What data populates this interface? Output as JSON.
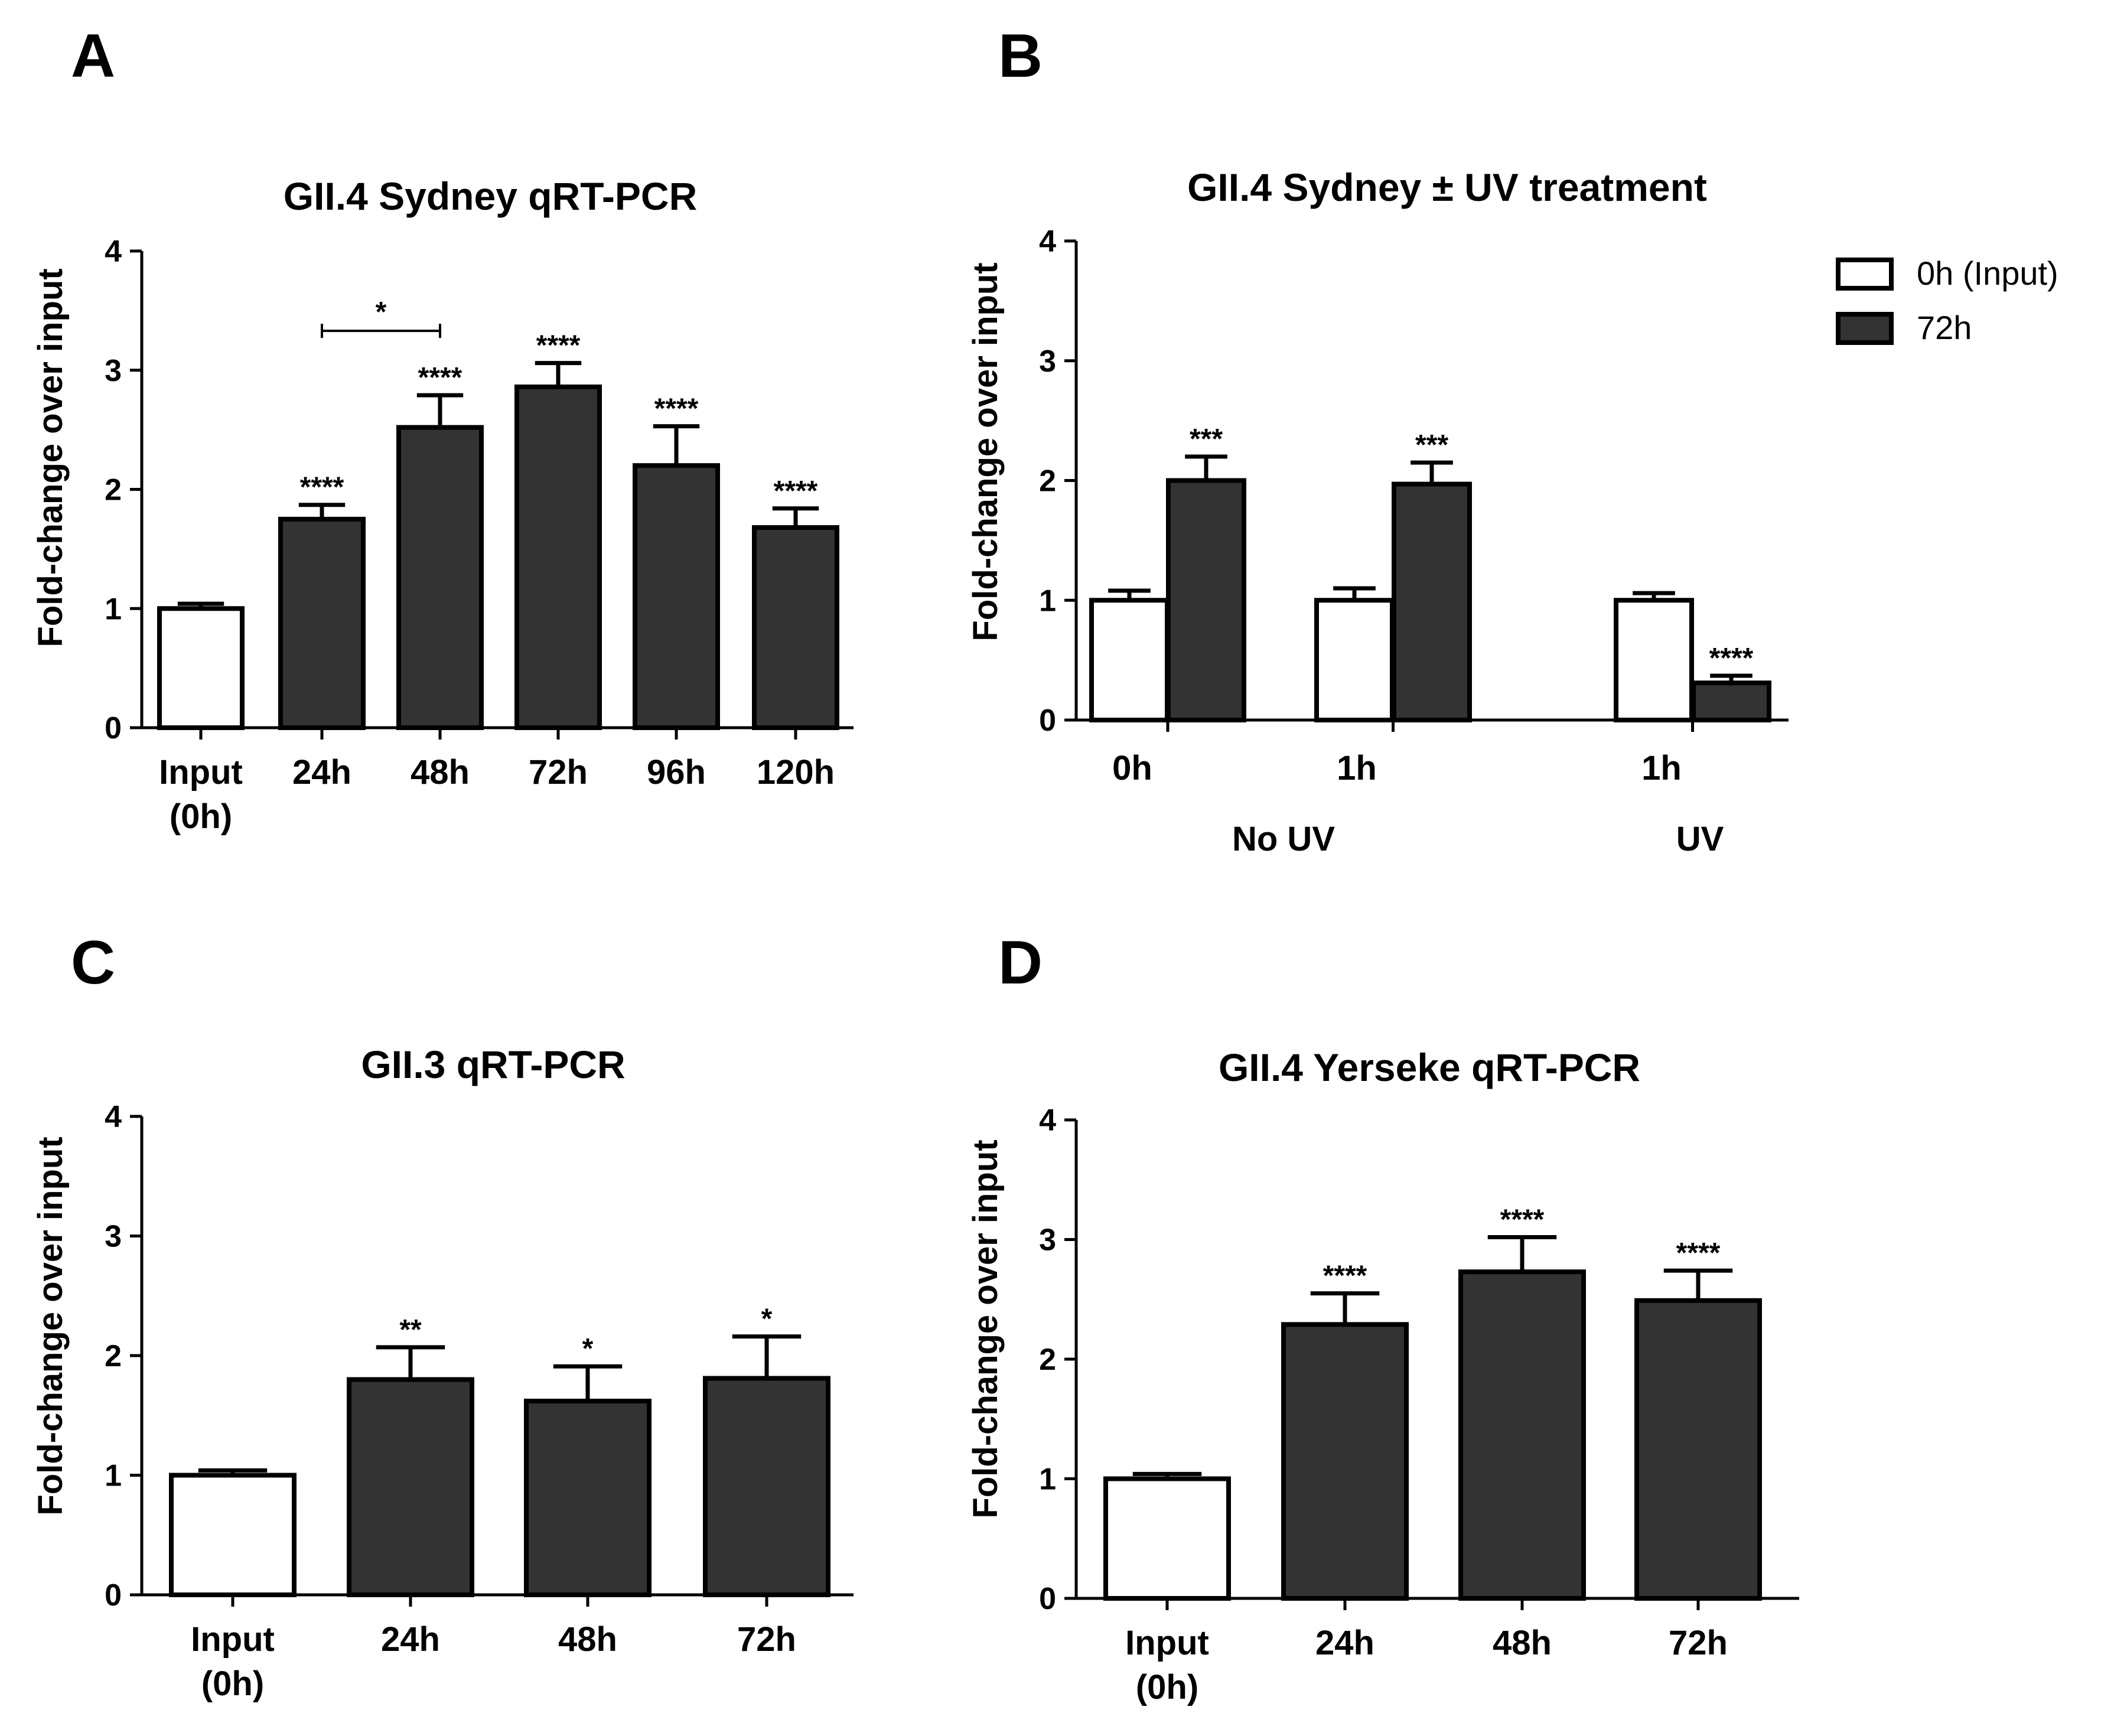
{
  "panels": [
    {
      "id": "A",
      "label": "A"
    },
    {
      "id": "B",
      "label": "B"
    },
    {
      "id": "C",
      "label": "C"
    },
    {
      "id": "D",
      "label": "D"
    }
  ],
  "chart_data": [
    {
      "panel": "A",
      "type": "bar",
      "title": "GII.4 Sydney qRT-PCR",
      "xlabel": "",
      "ylabel": "Fold-change over input",
      "ylim": [
        0,
        4
      ],
      "yticks": [
        0,
        1,
        2,
        3,
        4
      ],
      "categories": [
        "Input (0h)",
        "24h",
        "48h",
        "72h",
        "96h",
        "120h"
      ],
      "category_lines": [
        [
          "Input",
          "(0h)"
        ],
        [
          "24h"
        ],
        [
          "48h"
        ],
        [
          "72h"
        ],
        [
          "96h"
        ],
        [
          "120h"
        ]
      ],
      "values": [
        1.0,
        1.75,
        2.52,
        2.86,
        2.2,
        1.68
      ],
      "errors": [
        0.04,
        0.12,
        0.27,
        0.2,
        0.33,
        0.16
      ],
      "fills": [
        "white",
        "dark",
        "dark",
        "dark",
        "dark",
        "dark"
      ],
      "significance": [
        "",
        "****",
        "****",
        "****",
        "****",
        "****"
      ],
      "brackets": [
        {
          "from": "24h",
          "to": "48h",
          "y": 3.33,
          "label": "*"
        }
      ]
    },
    {
      "panel": "B",
      "type": "bar",
      "title": "GII.4 Sydney ± UV treatment",
      "xlabel": "",
      "ylabel": "Fold-change over input",
      "ylim": [
        0,
        4
      ],
      "yticks": [
        0,
        1,
        2,
        3,
        4
      ],
      "categories": [
        "0h",
        "1h",
        "1h"
      ],
      "groups": [
        "No UV",
        "No UV",
        "UV"
      ],
      "group_labels": [
        "No UV",
        "UV"
      ],
      "series": [
        {
          "name": "0h (Input)",
          "fill": "white",
          "values": [
            1.0,
            1.0,
            1.0
          ],
          "errors": [
            0.08,
            0.1,
            0.06
          ],
          "significance": [
            "",
            "",
            ""
          ]
        },
        {
          "name": "72h",
          "fill": "dark",
          "values": [
            2.0,
            1.97,
            0.31
          ],
          "errors": [
            0.2,
            0.18,
            0.06
          ],
          "significance": [
            "***",
            "***",
            "****"
          ]
        }
      ],
      "legend": {
        "position": "top-right",
        "entries": [
          "0h (Input)",
          "72h"
        ]
      }
    },
    {
      "panel": "C",
      "type": "bar",
      "title": "GII.3 qRT-PCR",
      "xlabel": "",
      "ylabel": "Fold-change over input",
      "ylim": [
        0,
        4
      ],
      "yticks": [
        0,
        1,
        2,
        3,
        4
      ],
      "categories": [
        "Input (0h)",
        "24h",
        "48h",
        "72h"
      ],
      "category_lines": [
        [
          "Input",
          "(0h)"
        ],
        [
          "24h"
        ],
        [
          "48h"
        ],
        [
          "72h"
        ]
      ],
      "values": [
        1.0,
        1.8,
        1.62,
        1.81
      ],
      "errors": [
        0.04,
        0.27,
        0.29,
        0.35
      ],
      "fills": [
        "white",
        "dark",
        "dark",
        "dark"
      ],
      "significance": [
        "",
        "**",
        "*",
        "*"
      ]
    },
    {
      "panel": "D",
      "type": "bar",
      "title": "GII.4 Yerseke qRT-PCR",
      "xlabel": "",
      "ylabel": "Fold-change over input",
      "ylim": [
        0,
        4
      ],
      "yticks": [
        0,
        1,
        2,
        3,
        4
      ],
      "categories": [
        "Input (0h)",
        "24h",
        "48h",
        "72h"
      ],
      "category_lines": [
        [
          "Input",
          "(0h)"
        ],
        [
          "24h"
        ],
        [
          "48h"
        ],
        [
          "72h"
        ]
      ],
      "values": [
        1.0,
        2.29,
        2.73,
        2.49
      ],
      "errors": [
        0.04,
        0.26,
        0.29,
        0.25
      ],
      "fills": [
        "white",
        "dark",
        "dark",
        "dark"
      ],
      "significance": [
        "",
        "****",
        "****",
        "****"
      ]
    }
  ],
  "colors": {
    "dark_bar": "#333333",
    "white_bar": "#ffffff",
    "stroke": "#000000"
  }
}
